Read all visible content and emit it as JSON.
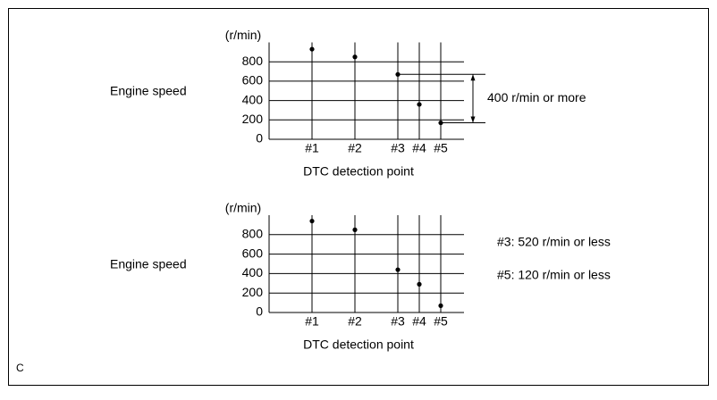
{
  "chart_data": [
    {
      "type": "scatter",
      "y_label": "Engine speed",
      "y_unit": "(r/min)",
      "x_label": "DTC detection point",
      "categories": [
        "#1",
        "#2",
        "#3",
        "#4",
        "#5"
      ],
      "values": [
        930,
        850,
        670,
        360,
        170
      ],
      "ylim": [
        0,
        1000
      ],
      "yticks": [
        0,
        200,
        400,
        600,
        800
      ],
      "grid": true,
      "annotations": [
        "400 r/min or more"
      ]
    },
    {
      "type": "scatter",
      "y_label": "Engine speed",
      "y_unit": "(r/min)",
      "x_label": "DTC detection point",
      "categories": [
        "#1",
        "#2",
        "#3",
        "#4",
        "#5"
      ],
      "values": [
        940,
        850,
        440,
        290,
        70
      ],
      "ylim": [
        0,
        1000
      ],
      "yticks": [
        0,
        200,
        400,
        600,
        800
      ],
      "grid": true,
      "annotations": [
        "#3: 520 r/min or less",
        "#5: 120 r/min or less"
      ]
    }
  ],
  "figure_code": "C"
}
